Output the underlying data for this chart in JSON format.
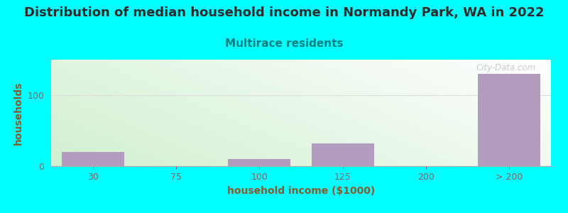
{
  "title": "Distribution of median household income in Normandy Park, WA in 2022",
  "subtitle": "Multirace residents",
  "xlabel": "household income ($1000)",
  "ylabel": "households",
  "background_color": "#00FFFF",
  "bar_color": "#b39dbe",
  "title_color": "#2a2a2a",
  "subtitle_color": "#008080",
  "axis_label_color": "#8B5A2B",
  "tick_label_color": "#8B6060",
  "watermark_text": "City-Data.com",
  "categories": [
    "30",
    "75",
    "100",
    "125",
    "200",
    "> 200"
  ],
  "values": [
    20,
    0,
    10,
    32,
    0,
    130
  ],
  "ylim": [
    0,
    150
  ],
  "yticks": [
    0,
    100
  ],
  "grid_color": "#dddddd",
  "title_fontsize": 13,
  "subtitle_fontsize": 11,
  "label_fontsize": 10,
  "tick_fontsize": 9
}
